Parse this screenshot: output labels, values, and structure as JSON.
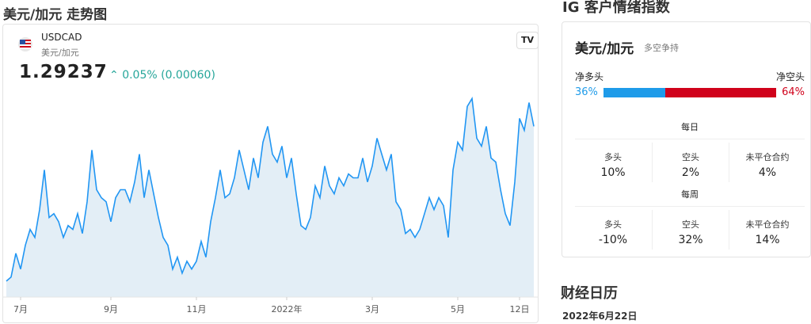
{
  "header": {
    "title": "美元/加元 走势图"
  },
  "instrument": {
    "symbol": "USDCAD",
    "name": "美元/加元",
    "price": "1.29237",
    "change": "0.05% (0.00060)"
  },
  "chart_data": {
    "type": "area",
    "color": "#2196f3",
    "fill": "#e3eef6",
    "values": [
      1.205,
      1.2073,
      1.2207,
      1.2118,
      1.2252,
      1.2342,
      1.2297,
      1.2454,
      1.2678,
      1.2409,
      1.2431,
      1.2386,
      1.2297,
      1.2364,
      1.2342,
      1.2431,
      1.2319,
      1.2498,
      1.279,
      1.2566,
      1.2521,
      1.2498,
      1.2386,
      1.2521,
      1.2566,
      1.2566,
      1.2498,
      1.261,
      1.2767,
      1.2521,
      1.2678,
      1.2543,
      1.2409,
      1.2297,
      1.2252,
      1.2118,
      1.2185,
      1.2095,
      1.2162,
      1.2118,
      1.2162,
      1.2274,
      1.2185,
      1.2386,
      1.2521,
      1.2678,
      1.2521,
      1.2543,
      1.2633,
      1.279,
      1.2678,
      1.2566,
      1.2745,
      1.2633,
      1.2834,
      1.2924,
      1.2767,
      1.2722,
      1.2812,
      1.2633,
      1.2745,
      1.2543,
      1.2364,
      1.2342,
      1.2409,
      1.2588,
      1.2521,
      1.27,
      1.2588,
      1.2543,
      1.2633,
      1.2588,
      1.2655,
      1.2633,
      1.2633,
      1.2745,
      1.261,
      1.27,
      1.2857,
      1.2767,
      1.2678,
      1.2767,
      1.2498,
      1.2454,
      1.2319,
      1.2342,
      1.2297,
      1.2342,
      1.2431,
      1.2521,
      1.2454,
      1.2521,
      1.2476,
      1.2297,
      1.2678,
      1.2834,
      1.279,
      1.3036,
      1.3081,
      1.2857,
      1.2812,
      1.2924,
      1.2745,
      1.2722,
      1.2566,
      1.2431,
      1.2364,
      1.261,
      1.2969,
      1.2902,
      1.3058,
      1.2924
    ],
    "xlim": [
      0,
      111
    ],
    "ylim": [
      1.196,
      1.319
    ],
    "xticks": [
      {
        "value": 3,
        "label": "7月"
      },
      {
        "value": 22,
        "label": "9月"
      },
      {
        "value": 40,
        "label": "11月"
      },
      {
        "value": 59,
        "label": "2022年"
      },
      {
        "value": 77,
        "label": "3月"
      },
      {
        "value": 95,
        "label": "5月"
      },
      {
        "value": 108,
        "label": "12日"
      }
    ]
  },
  "sentiment": {
    "title": "IG 客户情绪指数",
    "pair": "美元/加元",
    "status": "多空争持",
    "long": {
      "name": "净多头",
      "value": 36,
      "value_label": "36%",
      "color": "#1e9be9"
    },
    "short": {
      "name": "净空头",
      "value": 64,
      "value_label": "64%",
      "color": "#d0021b"
    },
    "daily": {
      "title": "每日",
      "columns": [
        [
          "多头",
          "10%"
        ],
        [
          "空头",
          "2%"
        ],
        [
          "未平仓合约",
          "4%"
        ]
      ]
    },
    "weekly": {
      "title": "每周",
      "columns": [
        [
          "多头",
          "-10%"
        ],
        [
          "空头",
          "32%"
        ],
        [
          "未平仓合约",
          "14%"
        ]
      ]
    }
  },
  "calendar": {
    "title": "财经日历",
    "date": "2022年6月22日"
  }
}
